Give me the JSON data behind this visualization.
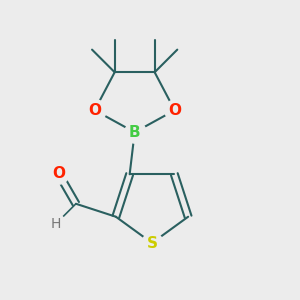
{
  "background_color": "#ececec",
  "bond_color": "#2a6060",
  "bond_width": 1.5,
  "atom_colors": {
    "S": "#cccc00",
    "O": "#ff2200",
    "B": "#44cc44",
    "H": "#777777",
    "C": "#2a6060"
  },
  "figsize": [
    3.0,
    3.0
  ],
  "dpi": 100
}
